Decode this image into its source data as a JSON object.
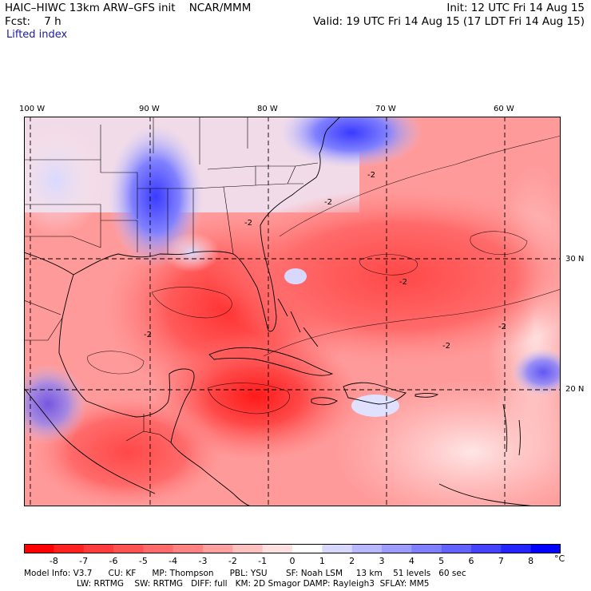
{
  "header": {
    "title_left": "HAIC–HIWC 13km ARW–GFS init    NCAR/MMM",
    "init": "Init: 12 UTC Fri 14 Aug 15",
    "fcst": "Fcst:    7 h",
    "valid": "Valid: 19 UTC Fri 14 Aug 15 (17 LDT Fri 14 Aug 15)",
    "field": "Lifted index"
  },
  "map": {
    "lon_labels": [
      "100 W",
      "90 W",
      "80 W",
      "70 W",
      "60 W"
    ],
    "lat_labels": [
      "30 N",
      "20 N"
    ],
    "contour_labels": [
      "-2",
      "-2",
      "-2",
      "-2",
      "-2",
      "-2",
      "-2"
    ]
  },
  "colorbar": {
    "labels": [
      "-8",
      "-7",
      "-6",
      "-5",
      "-4",
      "-3",
      "-2",
      "-1",
      "0",
      "1",
      "2",
      "3",
      "4",
      "5",
      "6",
      "7",
      "8"
    ],
    "unit": "°C",
    "colors": [
      "#ff0000",
      "#ff2020",
      "#ff3c3c",
      "#ff5252",
      "#ff6a6a",
      "#ff8282",
      "#ffa0a0",
      "#ffc0c0",
      "#ffe0e0",
      "#ffffff",
      "#d8d8ff",
      "#b8b8ff",
      "#9c9cff",
      "#8080ff",
      "#6262ff",
      "#4444ff",
      "#2424ff",
      "#0000ff"
    ]
  },
  "footer": {
    "line1": "Model Info: V3.7      CU: KF      MP: Thompson      PBL: YSU       SF: Noah LSM     13 km    51 levels   60 sec",
    "line2": "LW: RRTMG    SW: RRTMG   DIFF: full   KM: 2D Smagor DAMP: Rayleigh3  SFLAY: MM5"
  }
}
